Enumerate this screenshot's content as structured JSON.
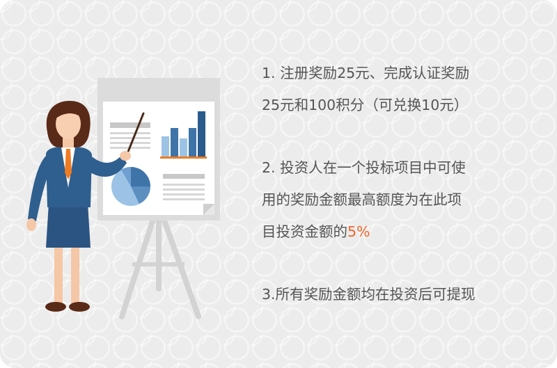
{
  "rules": {
    "rule1": {
      "line1": "1.   注册奖励25元、完成认证奖励",
      "line2": "25元和100积分（可兑换10元）"
    },
    "rule2": {
      "line1": "2.    投资人在一个投标项目中可使",
      "line2": "用的奖励金额最高额度为在此项",
      "line3_prefix": "目投资金额的",
      "line3_highlight": "5%"
    },
    "rule3": {
      "line1": "3.所有奖励金额均在投资后可提现"
    }
  },
  "colors": {
    "background": "#ececec",
    "text": "#555555",
    "highlight": "#f0662c",
    "suit": "#2f5f8f",
    "chart_blue": "#3e74a8",
    "tie": "#f07c22"
  },
  "icons": [
    "presenter-woman-illustration",
    "presentation-board-icon",
    "bar-chart-icon",
    "pie-chart-icon"
  ]
}
